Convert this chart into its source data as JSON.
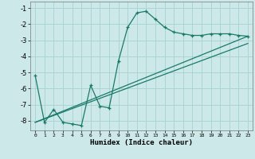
{
  "title": "",
  "xlabel": "Humidex (Indice chaleur)",
  "bg_color": "#cce8e8",
  "line_color": "#1a7a6a",
  "grid_color": "#aad4d4",
  "xlim": [
    -0.5,
    23.5
  ],
  "ylim": [
    -8.6,
    -0.6
  ],
  "yticks": [
    -8,
    -7,
    -6,
    -5,
    -4,
    -3,
    -2,
    -1
  ],
  "xticks": [
    0,
    1,
    2,
    3,
    4,
    5,
    6,
    7,
    8,
    9,
    10,
    11,
    12,
    13,
    14,
    15,
    16,
    17,
    18,
    19,
    20,
    21,
    22,
    23
  ],
  "line1_x": [
    0,
    1,
    2,
    3,
    4,
    5,
    6,
    7,
    8,
    9,
    10,
    11,
    12,
    13,
    14,
    15,
    16,
    17,
    18,
    19,
    20,
    21,
    22,
    23
  ],
  "line1_y": [
    -5.2,
    -8.1,
    -7.3,
    -8.1,
    -8.2,
    -8.3,
    -5.8,
    -7.1,
    -7.2,
    -4.3,
    -2.2,
    -1.3,
    -1.2,
    -1.7,
    -2.2,
    -2.5,
    -2.6,
    -2.7,
    -2.7,
    -2.6,
    -2.6,
    -2.6,
    -2.7,
    -2.75
  ],
  "line2_x": [
    0,
    23
  ],
  "line2_y": [
    -8.1,
    -2.75
  ],
  "line3_x": [
    0,
    23
  ],
  "line3_y": [
    -8.1,
    -3.2
  ]
}
